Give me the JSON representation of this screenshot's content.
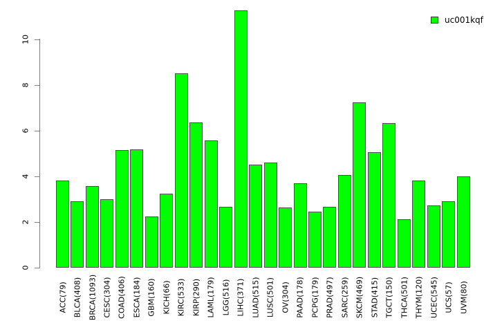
{
  "chart_data": {
    "type": "bar",
    "title": "",
    "xlabel": "",
    "ylabel": "",
    "categories": [
      "ACC(79)",
      "BLCA(408)",
      "BRCA(1093)",
      "CESC(304)",
      "COAD(406)",
      "ESCA(184)",
      "GBM(160)",
      "KICH(66)",
      "KIRC(533)",
      "KIRP(290)",
      "LAML(179)",
      "LGG(516)",
      "LIHC(371)",
      "LUAD(515)",
      "LUSC(501)",
      "OV(304)",
      "PAAD(178)",
      "PCPG(179)",
      "PRAD(497)",
      "SARC(259)",
      "SKCM(469)",
      "STAD(415)",
      "TGCT(150)",
      "THCA(501)",
      "THYM(120)",
      "UCEC(545)",
      "UCS(57)",
      "UVM(80)"
    ],
    "values": [
      3.81,
      2.9,
      3.57,
      3.0,
      5.15,
      5.18,
      2.25,
      3.25,
      8.51,
      6.36,
      5.57,
      2.68,
      11.27,
      4.52,
      4.6,
      2.63,
      3.69,
      2.45,
      2.68,
      4.07,
      7.24,
      5.05,
      6.33,
      2.12,
      3.82,
      2.73,
      2.9,
      4.0
    ],
    "yticks": [
      0,
      2,
      4,
      6,
      8,
      10
    ],
    "ylim": [
      0,
      11.3
    ],
    "grid": false,
    "legend": {
      "label": "uc001kqf",
      "color": "#00ff00",
      "position": "top-right"
    },
    "colors": {
      "bar_fill": "#00ff00",
      "bar_border": "#4d4d4d",
      "axis": "#808080",
      "text": "#000000",
      "background": "#ffffff"
    }
  }
}
